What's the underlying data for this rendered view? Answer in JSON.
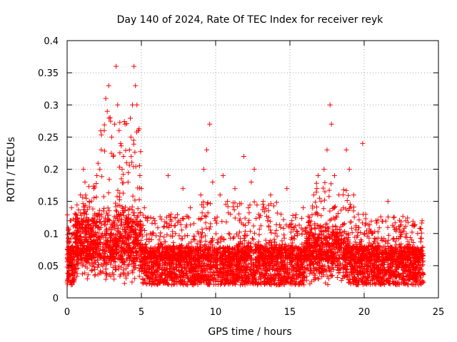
{
  "chart_data": {
    "type": "scatter",
    "title": "Day 140 of 2024, Rate Of TEC Index for receiver reyk",
    "xlabel": "GPS time / hours",
    "ylabel": "ROTI / TECUs",
    "xlim": [
      0,
      25
    ],
    "ylim": [
      0,
      0.4
    ],
    "xticks": [
      0,
      5,
      10,
      15,
      20,
      25
    ],
    "yticks": [
      0,
      0.05,
      0.1,
      0.15,
      0.2,
      0.25,
      0.3,
      0.35,
      0.4
    ],
    "xtick_labels": [
      "0",
      "5",
      "10",
      "15",
      "20",
      "25"
    ],
    "ytick_labels": [
      "0",
      "0.05",
      "0.1",
      "0.15",
      "0.2",
      "0.25",
      "0.3",
      "0.35",
      "0.4"
    ],
    "grid": true,
    "marker": "+",
    "color": "#ff0000",
    "series": [
      {
        "name": "ROTI",
        "points": [
          [
            0.1,
            0.08
          ],
          [
            0.2,
            0.12
          ],
          [
            0.3,
            0.14
          ],
          [
            0.4,
            0.1
          ],
          [
            0.5,
            0.07
          ],
          [
            0.6,
            0.13
          ],
          [
            0.8,
            0.09
          ],
          [
            0.9,
            0.16
          ],
          [
            1.0,
            0.11
          ],
          [
            1.1,
            0.2
          ],
          [
            1.2,
            0.18
          ],
          [
            1.3,
            0.12
          ],
          [
            1.5,
            0.15
          ],
          [
            1.6,
            0.1
          ],
          [
            1.8,
            0.17
          ],
          [
            2.0,
            0.19
          ],
          [
            2.2,
            0.2
          ],
          [
            2.3,
            0.23
          ],
          [
            2.5,
            0.26
          ],
          [
            2.6,
            0.31
          ],
          [
            2.7,
            0.29
          ],
          [
            2.8,
            0.33
          ],
          [
            2.9,
            0.28
          ],
          [
            3.0,
            0.25
          ],
          [
            3.1,
            0.22
          ],
          [
            3.2,
            0.27
          ],
          [
            3.3,
            0.36
          ],
          [
            3.4,
            0.3
          ],
          [
            3.5,
            0.26
          ],
          [
            3.6,
            0.24
          ],
          [
            3.7,
            0.2
          ],
          [
            3.8,
            0.22
          ],
          [
            3.9,
            0.27
          ],
          [
            4.0,
            0.21
          ],
          [
            4.1,
            0.18
          ],
          [
            4.2,
            0.23
          ],
          [
            4.3,
            0.25
          ],
          [
            4.4,
            0.3
          ],
          [
            4.5,
            0.36
          ],
          [
            4.6,
            0.33
          ],
          [
            4.7,
            0.3
          ],
          [
            4.8,
            0.26
          ],
          [
            4.9,
            0.19
          ],
          [
            5.0,
            0.17
          ],
          [
            5.2,
            0.14
          ],
          [
            5.4,
            0.12
          ],
          [
            5.6,
            0.1
          ],
          [
            5.9,
            0.12
          ],
          [
            6.2,
            0.09
          ],
          [
            6.5,
            0.11
          ],
          [
            6.8,
            0.19
          ],
          [
            7.0,
            0.13
          ],
          [
            7.3,
            0.1
          ],
          [
            7.6,
            0.12
          ],
          [
            7.8,
            0.17
          ],
          [
            8.0,
            0.11
          ],
          [
            8.3,
            0.14
          ],
          [
            8.6,
            0.09
          ],
          [
            9.0,
            0.16
          ],
          [
            9.2,
            0.2
          ],
          [
            9.4,
            0.23
          ],
          [
            9.6,
            0.27
          ],
          [
            9.8,
            0.18
          ],
          [
            10.0,
            0.12
          ],
          [
            10.3,
            0.16
          ],
          [
            10.5,
            0.19
          ],
          [
            10.8,
            0.15
          ],
          [
            11.0,
            0.13
          ],
          [
            11.3,
            0.17
          ],
          [
            11.6,
            0.12
          ],
          [
            11.9,
            0.22
          ],
          [
            12.2,
            0.14
          ],
          [
            12.4,
            0.18
          ],
          [
            12.6,
            0.2
          ],
          [
            12.9,
            0.13
          ],
          [
            13.2,
            0.15
          ],
          [
            13.5,
            0.12
          ],
          [
            13.7,
            0.16
          ],
          [
            14.0,
            0.1
          ],
          [
            14.4,
            0.13
          ],
          [
            14.8,
            0.17
          ],
          [
            15.0,
            0.11
          ],
          [
            15.5,
            0.1
          ],
          [
            15.9,
            0.14
          ],
          [
            16.3,
            0.12
          ],
          [
            16.6,
            0.16
          ],
          [
            16.9,
            0.19
          ],
          [
            17.1,
            0.15
          ],
          [
            17.3,
            0.2
          ],
          [
            17.5,
            0.23
          ],
          [
            17.7,
            0.3
          ],
          [
            17.8,
            0.27
          ],
          [
            18.0,
            0.19
          ],
          [
            18.3,
            0.16
          ],
          [
            18.6,
            0.14
          ],
          [
            18.8,
            0.23
          ],
          [
            19.0,
            0.2
          ],
          [
            19.3,
            0.16
          ],
          [
            19.6,
            0.13
          ],
          [
            19.9,
            0.24
          ],
          [
            20.1,
            0.13
          ],
          [
            20.5,
            0.1
          ],
          [
            20.8,
            0.12
          ],
          [
            21.2,
            0.09
          ],
          [
            21.6,
            0.15
          ],
          [
            22.0,
            0.11
          ],
          [
            22.4,
            0.08
          ],
          [
            22.8,
            0.12
          ],
          [
            23.2,
            0.09
          ],
          [
            23.6,
            0.1
          ],
          [
            23.9,
            0.12
          ]
        ]
      }
    ]
  }
}
